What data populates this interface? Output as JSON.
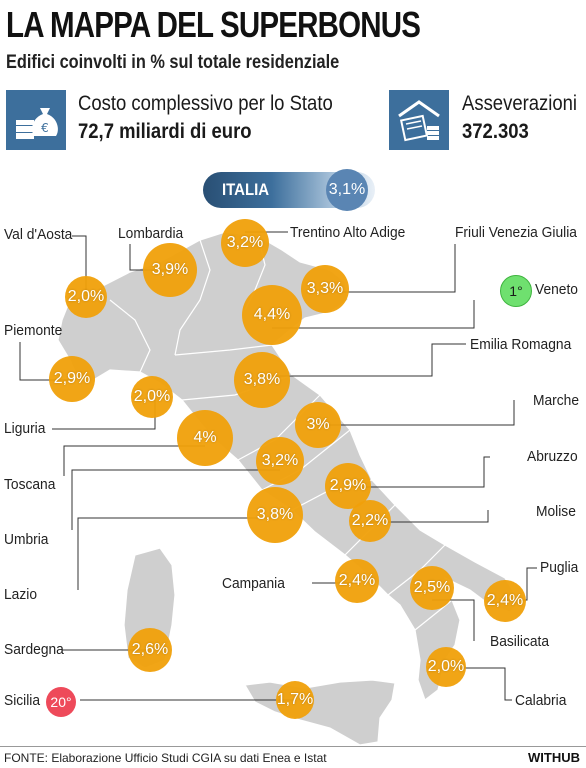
{
  "header": {
    "title": "LA MAPPA DEL SUPERBONUS",
    "subtitle": "Edifici coinvolti in % sul totale residenziale"
  },
  "stats": [
    {
      "label": "Costo complessivo per lo Stato",
      "value": "72,7 miliardi di euro",
      "icon": "money-bag-coins-icon"
    },
    {
      "label": "Asseverazioni",
      "value": "372.303",
      "icon": "house-document-coins-icon"
    }
  ],
  "italia": {
    "label": "ITALIA",
    "value": "3,1%"
  },
  "regions": [
    {
      "name": "Val d'Aosta",
      "value": "2,0%"
    },
    {
      "name": "Lombardia",
      "value": "3,9%"
    },
    {
      "name": "Trentino Alto Adige",
      "value": "3,2%"
    },
    {
      "name": "Friuli Venezia Giulia",
      "value": "3,3%"
    },
    {
      "name": "Veneto",
      "value": "4,4%",
      "rank": "1°"
    },
    {
      "name": "Piemonte",
      "value": "2,9%"
    },
    {
      "name": "Emilia Romagna",
      "value": "3,8%"
    },
    {
      "name": "Liguria",
      "value": "2,0%"
    },
    {
      "name": "Marche",
      "value": "3%"
    },
    {
      "name": "Toscana",
      "value": "4%"
    },
    {
      "name": "Abruzzo",
      "value": "2,9%"
    },
    {
      "name": "Umbria",
      "value": "3,2%"
    },
    {
      "name": "Molise",
      "value": "2,2%"
    },
    {
      "name": "Lazio",
      "value": "3,8%"
    },
    {
      "name": "Campania",
      "value": "2,4%"
    },
    {
      "name": "Puglia",
      "value": "2,4%"
    },
    {
      "name": "Basilicata",
      "value": "2,5%"
    },
    {
      "name": "Sardegna",
      "value": "2,6%"
    },
    {
      "name": "Calabria",
      "value": "2,0%"
    },
    {
      "name": "Sicilia",
      "value": "1,7%",
      "rank": "20°"
    }
  ],
  "colors": {
    "bubble": "#f0a00a",
    "map_fill": "#cfcfcf",
    "accent_blue": "#3d6f9c",
    "rank_first": "#6fe06f",
    "rank_last": "#ee4a5a"
  },
  "footer": {
    "source": "FONTE: Elaborazione Ufficio Studi CGIA su dati Enea e Istat",
    "brand": "WITHUB"
  }
}
